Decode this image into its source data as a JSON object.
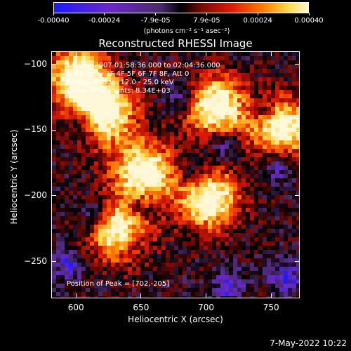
{
  "colorbar": {
    "tick_labels": [
      "-0.00040",
      "-0.00024",
      "-7.9e-05",
      "7.9e-05",
      "0.00024",
      "0.00040"
    ],
    "unit_label": "(photons cm⁻² s⁻¹ asec⁻²)",
    "range": [
      -0.0004,
      0.0004
    ]
  },
  "info": {
    "time_range": "15-Dec-2007 01:58:36.000 to 02:04:36.000",
    "detectors": "Detectors: 3F 4F 5F 6F 7F 8F, Att 0",
    "energy": "Energy Range: 12.0 - 25.0 keV",
    "algorithm": "Clean      Total counts: 8.34E+03",
    "peak": "Position of Peak = [702,-205]"
  },
  "footer": {
    "timestamp": "7-May-2022 10:22"
  },
  "chart_data": {
    "type": "heatmap",
    "title": "Reconstructed RHESSI Image",
    "xlabel": "Heliocentric X (arcsec)",
    "ylabel": "Heliocentric Y (arcsec)",
    "xlim": [
      581,
      772
    ],
    "ylim": [
      -278,
      -90
    ],
    "x_ticks": [
      600,
      650,
      700,
      750
    ],
    "y_ticks": [
      -100,
      -150,
      -200,
      -250
    ],
    "x_tick_labels": [
      "600",
      "650",
      "700",
      "750"
    ],
    "y_tick_labels": [
      "−100",
      "−150",
      "−200",
      "−250"
    ],
    "peak": [
      702,
      -205
    ],
    "bright_regions": [
      {
        "x": 632,
        "y": -225
      },
      {
        "x": 650,
        "y": -180
      },
      {
        "x": 700,
        "y": -200
      },
      {
        "x": 755,
        "y": -145
      },
      {
        "x": 620,
        "y": -135
      },
      {
        "x": 705,
        "y": -130
      },
      {
        "x": 600,
        "y": -108
      }
    ],
    "colorscale": [
      "#1a1aff",
      "#6a28c8",
      "#4a2a6a",
      "#000000",
      "#7a0a05",
      "#e01a05",
      "#ff7a00",
      "#ffd84a",
      "#fff8d8"
    ]
  }
}
